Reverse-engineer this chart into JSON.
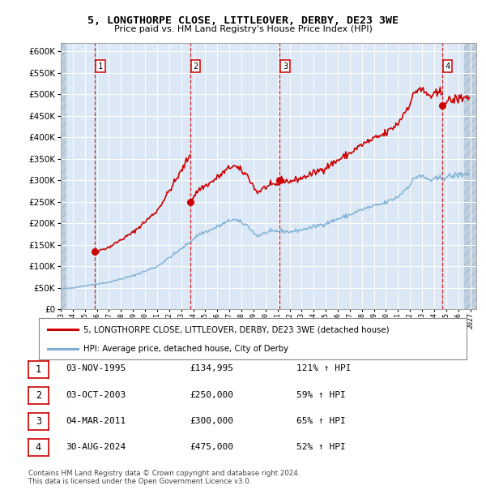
{
  "title": "5, LONGTHORPE CLOSE, LITTLEOVER, DERBY, DE23 3WE",
  "subtitle": "Price paid vs. HM Land Registry's House Price Index (HPI)",
  "legend_line1": "5, LONGTHORPE CLOSE, LITTLEOVER, DERBY, DE23 3WE (detached house)",
  "legend_line2": "HPI: Average price, detached house, City of Derby",
  "footer1": "Contains HM Land Registry data © Crown copyright and database right 2024.",
  "footer2": "This data is licensed under the Open Government Licence v3.0.",
  "sale_color": "#cc0000",
  "hpi_color": "#7aafd4",
  "bg_color": "#dce8f5",
  "hatch_color": "#c0cfde",
  "grid_color": "#ffffff",
  "ylim": [
    0,
    620000
  ],
  "yticks": [
    0,
    50000,
    100000,
    150000,
    200000,
    250000,
    300000,
    350000,
    400000,
    450000,
    500000,
    550000,
    600000
  ],
  "xlim_start": 1993.0,
  "xlim_end": 2027.5,
  "sale_years": [
    1995.833,
    2003.75,
    2011.167,
    2024.667
  ],
  "sale_prices": [
    134995,
    250000,
    300000,
    475000
  ],
  "sale_labels": [
    "1",
    "2",
    "3",
    "4"
  ],
  "table_rows": [
    [
      "1",
      "03-NOV-1995",
      "£134,995",
      "121% ↑ HPI"
    ],
    [
      "2",
      "03-OCT-2003",
      "£250,000",
      "59% ↑ HPI"
    ],
    [
      "3",
      "04-MAR-2011",
      "£300,000",
      "65% ↑ HPI"
    ],
    [
      "4",
      "30-AUG-2024",
      "£475,000",
      "52% ↑ HPI"
    ]
  ]
}
